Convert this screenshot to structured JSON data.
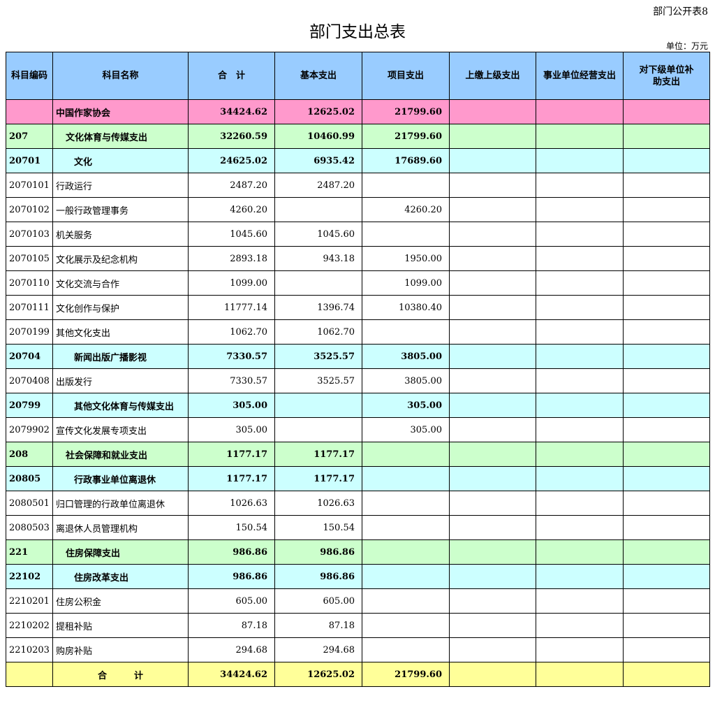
{
  "form_no": "部门公开表8",
  "title": "部门支出总表",
  "unit": "单位：万元",
  "colors": {
    "header": "#99ccff",
    "org": "#ff99cc",
    "level1": "#ccffcc",
    "level2": "#ccffff",
    "total": "#ffff99"
  },
  "columns": [
    "科目编码",
    "科目名称",
    "合　计",
    "基本支出",
    "项目支出",
    "上缴上级支出",
    "事业单位经营支出",
    "对下级单位补助支出"
  ],
  "rows": [
    {
      "level": "org",
      "code": "",
      "name": "中国作家协会",
      "total": "34424.62",
      "basic": "12625.02",
      "project": "21799.60"
    },
    {
      "level": "l1",
      "code": "207",
      "name": "文化体育与传媒支出",
      "total": "32260.59",
      "basic": "10460.99",
      "project": "21799.60"
    },
    {
      "level": "l2",
      "code": "20701",
      "name": "文化",
      "total": "24625.02",
      "basic": "6935.42",
      "project": "17689.60"
    },
    {
      "level": "d",
      "code": "2070101",
      "name": "行政运行",
      "total": "2487.20",
      "basic": "2487.20",
      "project": ""
    },
    {
      "level": "d",
      "code": "2070102",
      "name": "一般行政管理事务",
      "total": "4260.20",
      "basic": "",
      "project": "4260.20"
    },
    {
      "level": "d",
      "code": "2070103",
      "name": "机关服务",
      "total": "1045.60",
      "basic": "1045.60",
      "project": ""
    },
    {
      "level": "d",
      "code": "2070105",
      "name": "文化展示及纪念机构",
      "total": "2893.18",
      "basic": "943.18",
      "project": "1950.00"
    },
    {
      "level": "d",
      "code": "2070110",
      "name": "文化交流与合作",
      "total": "1099.00",
      "basic": "",
      "project": "1099.00"
    },
    {
      "level": "d",
      "code": "2070111",
      "name": "文化创作与保护",
      "total": "11777.14",
      "basic": "1396.74",
      "project": "10380.40"
    },
    {
      "level": "d",
      "code": "2070199",
      "name": "其他文化支出",
      "total": "1062.70",
      "basic": "1062.70",
      "project": ""
    },
    {
      "level": "l2",
      "code": "20704",
      "name": "新闻出版广播影视",
      "total": "7330.57",
      "basic": "3525.57",
      "project": "3805.00"
    },
    {
      "level": "d",
      "code": "2070408",
      "name": "出版发行",
      "total": "7330.57",
      "basic": "3525.57",
      "project": "3805.00"
    },
    {
      "level": "l2",
      "code": "20799",
      "name": "其他文化体育与传媒支出",
      "total": "305.00",
      "basic": "",
      "project": "305.00"
    },
    {
      "level": "d",
      "code": "2079902",
      "name": "宣传文化发展专项支出",
      "total": "305.00",
      "basic": "",
      "project": "305.00"
    },
    {
      "level": "l1",
      "code": "208",
      "name": "社会保障和就业支出",
      "total": "1177.17",
      "basic": "1177.17",
      "project": ""
    },
    {
      "level": "l2",
      "code": "20805",
      "name": "行政事业单位离退休",
      "total": "1177.17",
      "basic": "1177.17",
      "project": ""
    },
    {
      "level": "d",
      "code": "2080501",
      "name": "归口管理的行政单位离退休",
      "total": "1026.63",
      "basic": "1026.63",
      "project": ""
    },
    {
      "level": "d",
      "code": "2080503",
      "name": "离退休人员管理机构",
      "total": "150.54",
      "basic": "150.54",
      "project": ""
    },
    {
      "level": "l1",
      "code": "221",
      "name": "住房保障支出",
      "total": "986.86",
      "basic": "986.86",
      "project": ""
    },
    {
      "level": "l2",
      "code": "22102",
      "name": "住房改革支出",
      "total": "986.86",
      "basic": "986.86",
      "project": ""
    },
    {
      "level": "d",
      "code": "2210201",
      "name": "住房公积金",
      "total": "605.00",
      "basic": "605.00",
      "project": ""
    },
    {
      "level": "d",
      "code": "2210202",
      "name": "提租补贴",
      "total": "87.18",
      "basic": "87.18",
      "project": ""
    },
    {
      "level": "d",
      "code": "2210203",
      "name": "购房补贴",
      "total": "294.68",
      "basic": "294.68",
      "project": ""
    },
    {
      "level": "total",
      "code": "",
      "name": "合　　　计",
      "total": "34424.62",
      "basic": "12625.02",
      "project": "21799.60"
    }
  ]
}
